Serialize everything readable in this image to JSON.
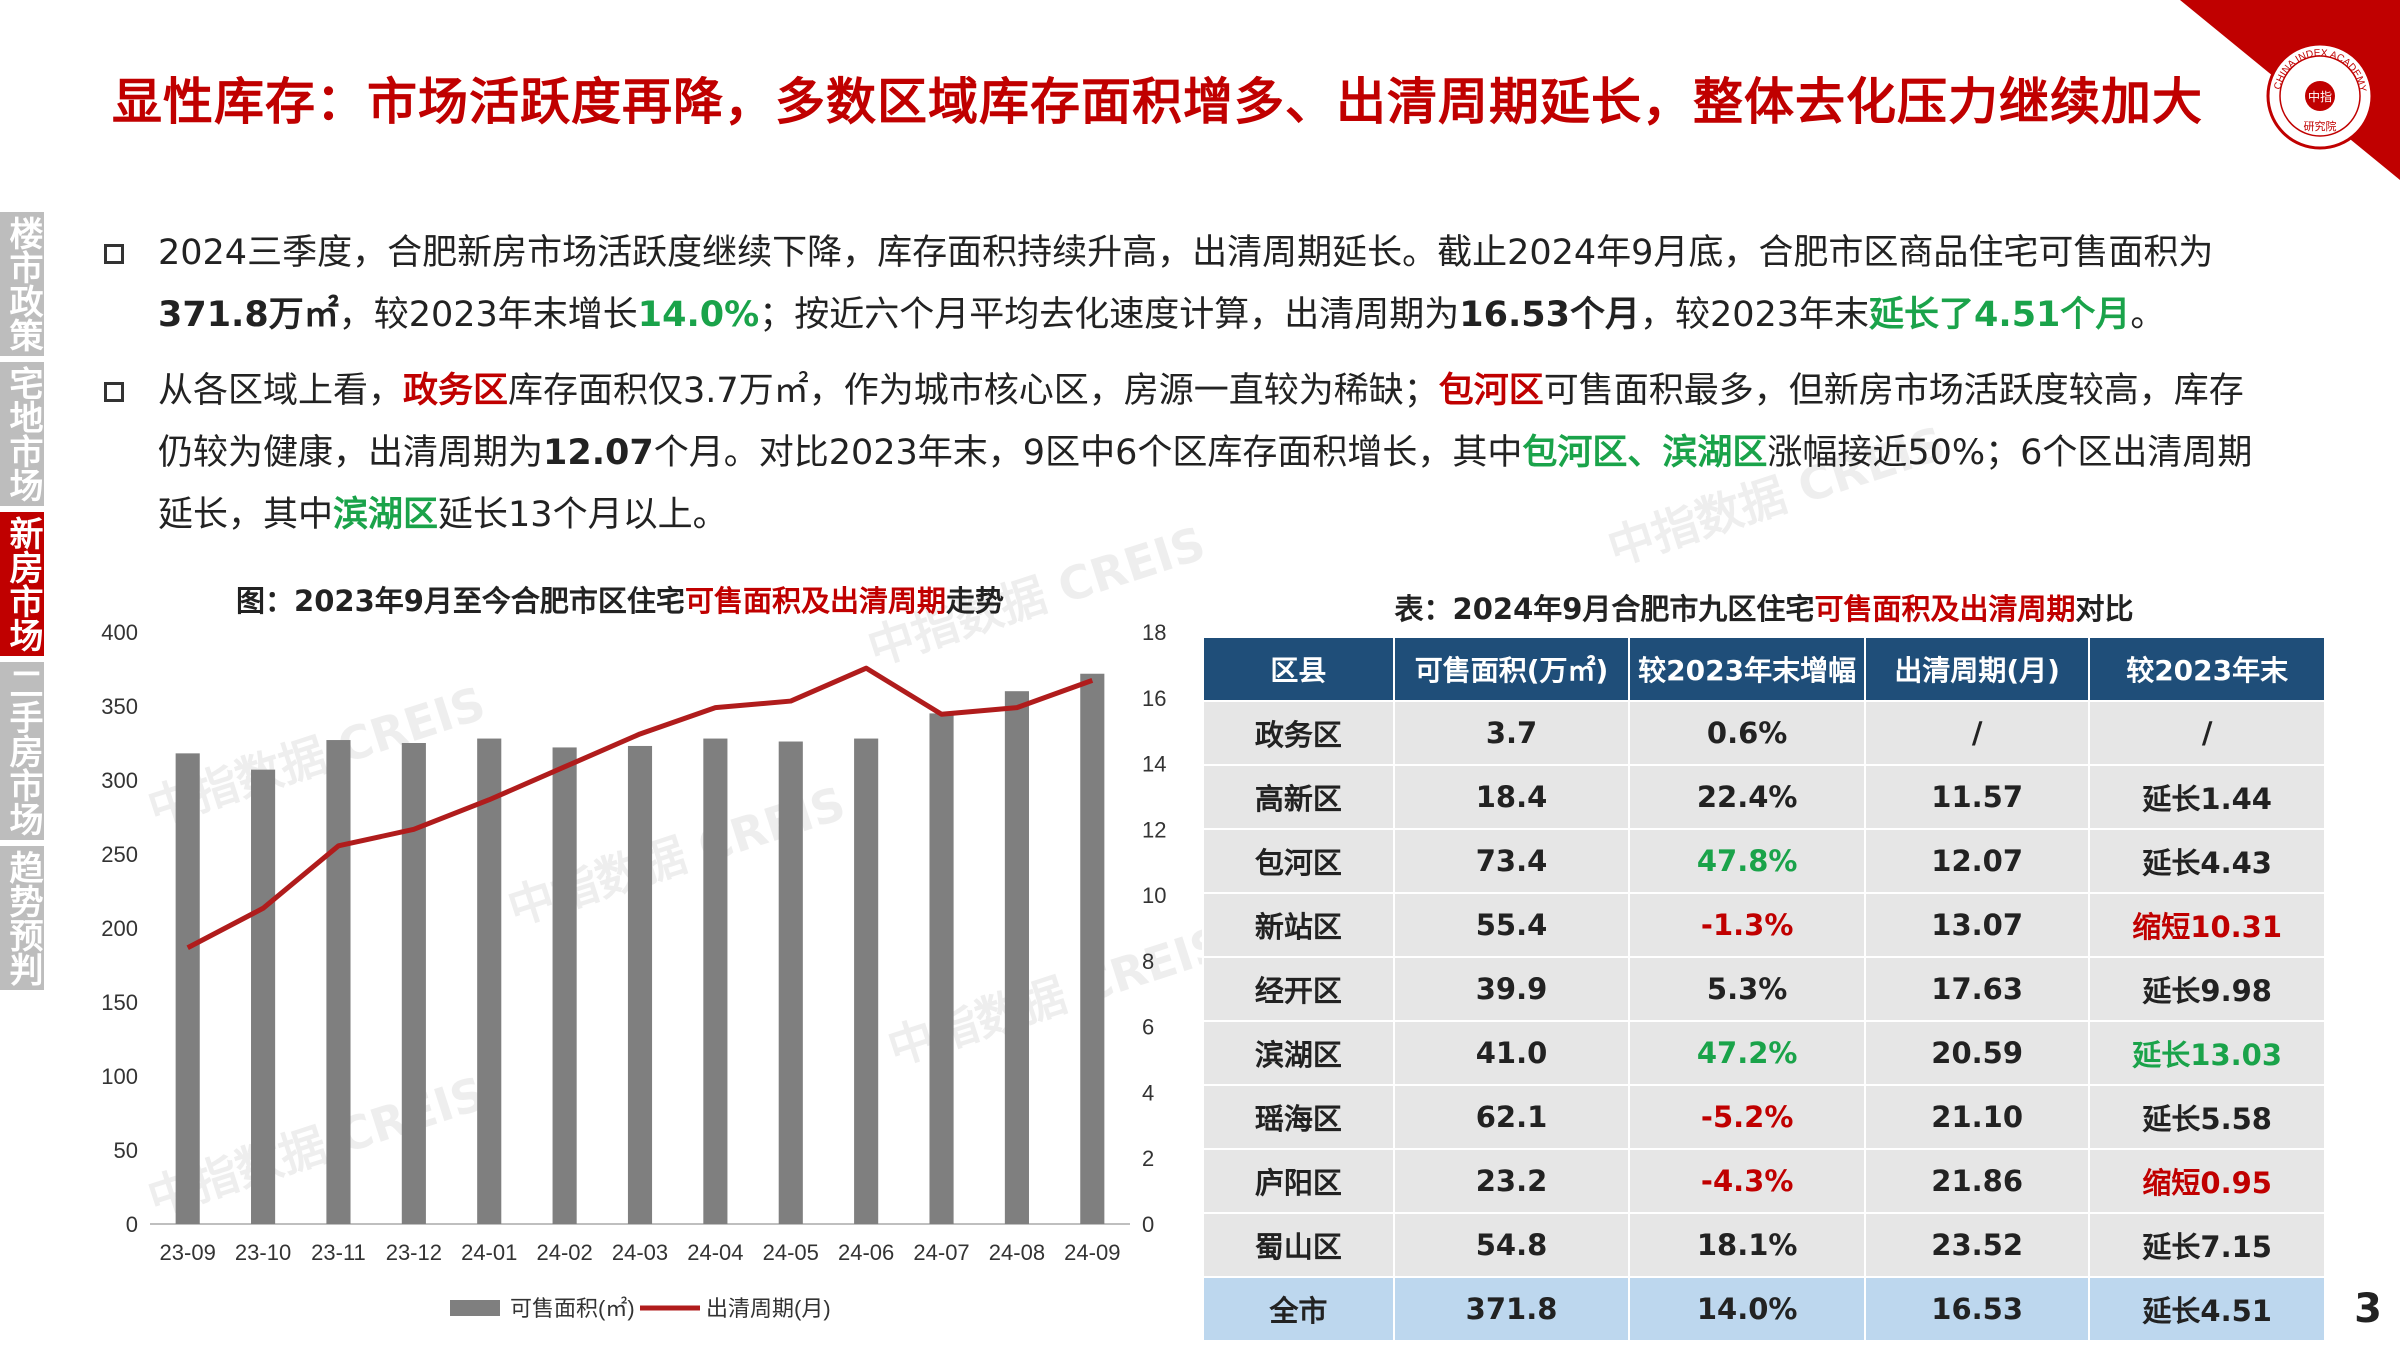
{
  "title": "显性库存：市场活跃度再降，多数区域库存面积增多、出清周期延长，整体去化压力继续加大",
  "sidenav": [
    {
      "label": "楼市政策",
      "active": false
    },
    {
      "label": "宅地市场",
      "active": false
    },
    {
      "label": "新房市场",
      "active": true
    },
    {
      "label": "二手房市场",
      "active": false
    },
    {
      "label": "趋势预判",
      "active": false
    }
  ],
  "bullet1": {
    "p1": "2024三季度，合肥新房市场活跃度继续下降，库存面积持续升高，出清周期延长。截止2024年9月底，合肥市区商品住宅可售面积为",
    "b1": "371.8万㎡",
    "p2": "，较2023年末增长",
    "g1": "14.0%",
    "p3": "；按近六个月平均去化速度计算，出清周期为",
    "b2": "16.53个月",
    "p4": "，较2023年末",
    "g2": "延长了4.51个月",
    "p5": "。"
  },
  "bullet2": {
    "p1": "从各区域上看，",
    "r1": "政务区",
    "p2": "库存面积仅3.7万㎡，作为城市核心区，房源一直较为稀缺；",
    "r2": "包河区",
    "p3": "可售面积最多，但新房市场活跃度较高，库存仍较为健康，出清周期为",
    "b1": "12.07",
    "p4": "个月。对比2023年末，9区中6个区库存面积增长，其中",
    "g1": "包河区、滨湖区",
    "p5": "涨幅接近50%；6个区出清周期延长，其中",
    "g2": "滨湖区",
    "p6": "延长13个月以上。"
  },
  "chart_title": {
    "pre": "图：2023年9月至今合肥市区住宅",
    "red": "可售面积及出清周期",
    "post": "走势"
  },
  "chart_data": {
    "type": "bar",
    "categories": [
      "23-09",
      "23-10",
      "23-11",
      "23-12",
      "24-01",
      "24-02",
      "24-03",
      "24-04",
      "24-05",
      "24-06",
      "24-07",
      "24-08",
      "24-09"
    ],
    "series": [
      {
        "name": "可售面积(㎡)",
        "type": "bar",
        "axis": "left",
        "color": "#7f7f7f",
        "values": [
          318,
          307,
          327,
          325,
          328,
          322,
          323,
          328,
          326,
          328,
          345,
          360,
          371.8
        ]
      },
      {
        "name": "出清周期(月)",
        "type": "line",
        "axis": "right",
        "color": "#b01c1c",
        "values": [
          8.4,
          9.6,
          11.5,
          12.0,
          12.9,
          13.9,
          14.9,
          15.7,
          15.9,
          16.9,
          15.5,
          15.7,
          16.53
        ]
      }
    ],
    "ylim_left": [
      0,
      400
    ],
    "yticks_left": [
      0,
      50,
      100,
      150,
      200,
      250,
      300,
      350,
      400
    ],
    "ylim_right": [
      0,
      18
    ],
    "yticks_right": [
      0,
      2,
      4,
      6,
      8,
      10,
      12,
      14,
      16,
      18
    ],
    "legend_position": "bottom",
    "grid": false
  },
  "table_title": {
    "pre": "表：2024年9月合肥市九区住宅",
    "red": "可售面积及出清周期",
    "post": "对比"
  },
  "table": {
    "headers": [
      "区县",
      "可售面积(万㎡)",
      "较2023年末增幅",
      "出清周期(月)",
      "较2023年末"
    ],
    "rows": [
      {
        "cells": [
          "政务区",
          "3.7",
          "0.6%",
          "/",
          "/"
        ],
        "colors": [
          "",
          "",
          "",
          "",
          ""
        ]
      },
      {
        "cells": [
          "高新区",
          "18.4",
          "22.4%",
          "11.57",
          "延长1.44"
        ],
        "colors": [
          "",
          "",
          "",
          "",
          ""
        ]
      },
      {
        "cells": [
          "包河区",
          "73.4",
          "47.8%",
          "12.07",
          "延长4.43"
        ],
        "colors": [
          "",
          "",
          "g",
          "",
          ""
        ]
      },
      {
        "cells": [
          "新站区",
          "55.4",
          "-1.3%",
          "13.07",
          "缩短10.31"
        ],
        "colors": [
          "",
          "",
          "r",
          "",
          "r"
        ]
      },
      {
        "cells": [
          "经开区",
          "39.9",
          "5.3%",
          "17.63",
          "延长9.98"
        ],
        "colors": [
          "",
          "",
          "",
          "",
          ""
        ]
      },
      {
        "cells": [
          "滨湖区",
          "41.0",
          "47.2%",
          "20.59",
          "延长13.03"
        ],
        "colors": [
          "",
          "",
          "g",
          "",
          "g"
        ]
      },
      {
        "cells": [
          "瑶海区",
          "62.1",
          "-5.2%",
          "21.10",
          "延长5.58"
        ],
        "colors": [
          "",
          "",
          "r",
          "",
          ""
        ]
      },
      {
        "cells": [
          "庐阳区",
          "23.2",
          "-4.3%",
          "21.86",
          "缩短0.95"
        ],
        "colors": [
          "",
          "",
          "r",
          "",
          "r"
        ]
      },
      {
        "cells": [
          "蜀山区",
          "54.8",
          "18.1%",
          "23.52",
          "延长7.15"
        ],
        "colors": [
          "",
          "",
          "",
          "",
          ""
        ]
      }
    ],
    "total": {
      "cells": [
        "全市",
        "371.8",
        "14.0%",
        "16.53",
        "延长4.51"
      ]
    }
  },
  "logo": {
    "top": "CHINA INDEX ACADEMY",
    "center": "中指",
    "bottom": "研究院"
  },
  "watermark": "中指数据 CREIS",
  "page_number": "3"
}
